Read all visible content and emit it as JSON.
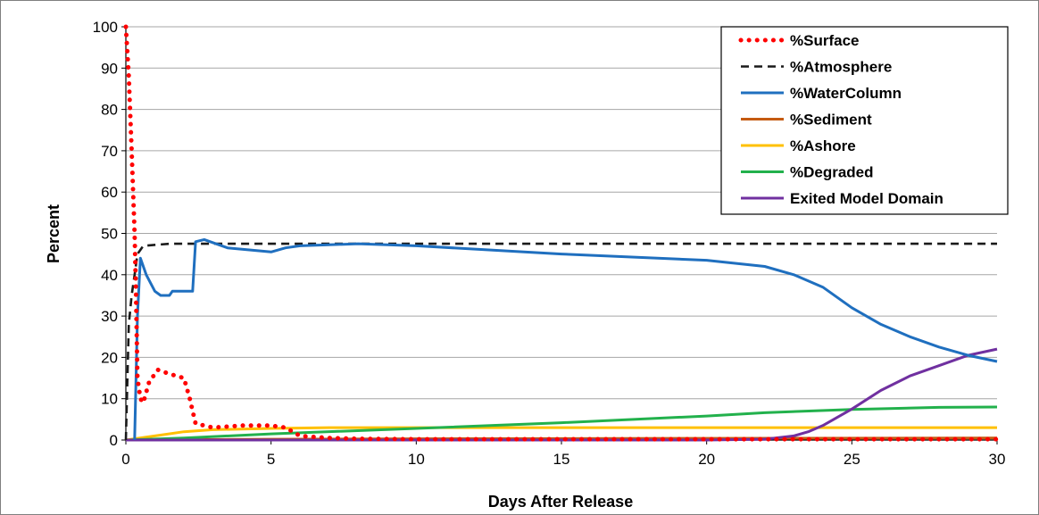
{
  "chart_data": {
    "type": "line",
    "title": "",
    "xlabel": "Days After Release",
    "ylabel": "Percent",
    "xlim": [
      0,
      30
    ],
    "ylim": [
      0,
      100
    ],
    "xticks": [
      0,
      5,
      10,
      15,
      20,
      25,
      30
    ],
    "yticks": [
      0,
      10,
      20,
      30,
      40,
      50,
      60,
      70,
      80,
      90,
      100
    ],
    "grid": "horizontal",
    "legend_position": "top-right",
    "series": [
      {
        "name": "%Surface",
        "color": "#ff0000",
        "style": "dotted",
        "points": [
          [
            0,
            100
          ],
          [
            0.1,
            88
          ],
          [
            0.2,
            70
          ],
          [
            0.3,
            50
          ],
          [
            0.35,
            35
          ],
          [
            0.4,
            15
          ],
          [
            0.5,
            10
          ],
          [
            0.6,
            9
          ],
          [
            0.8,
            14
          ],
          [
            1.1,
            17
          ],
          [
            1.5,
            16
          ],
          [
            2.0,
            15
          ],
          [
            2.2,
            10
          ],
          [
            2.4,
            4
          ],
          [
            3.0,
            3
          ],
          [
            4.0,
            3.5
          ],
          [
            5.0,
            3.5
          ],
          [
            5.5,
            3
          ],
          [
            6.0,
            1
          ],
          [
            7,
            0.5
          ],
          [
            8,
            0.3
          ],
          [
            10,
            0.2
          ],
          [
            15,
            0.2
          ],
          [
            20,
            0.2
          ],
          [
            25,
            0.2
          ],
          [
            30,
            0.2
          ]
        ]
      },
      {
        "name": "%Atmosphere",
        "color": "#1a1a1a",
        "style": "dashed",
        "points": [
          [
            0,
            0
          ],
          [
            0.1,
            28
          ],
          [
            0.2,
            35
          ],
          [
            0.3,
            40
          ],
          [
            0.4,
            45
          ],
          [
            0.6,
            47
          ],
          [
            1.5,
            47.5
          ],
          [
            5,
            47.5
          ],
          [
            10,
            47.5
          ],
          [
            15,
            47.5
          ],
          [
            20,
            47.5
          ],
          [
            25,
            47.5
          ],
          [
            30,
            47.5
          ]
        ]
      },
      {
        "name": "%WaterColumn",
        "color": "#1f6fbf",
        "style": "solid",
        "points": [
          [
            0.3,
            0
          ],
          [
            0.4,
            30
          ],
          [
            0.5,
            44
          ],
          [
            0.7,
            40
          ],
          [
            1.0,
            36
          ],
          [
            1.2,
            35
          ],
          [
            1.5,
            35
          ],
          [
            1.6,
            36
          ],
          [
            2.0,
            36
          ],
          [
            2.3,
            36
          ],
          [
            2.4,
            48
          ],
          [
            2.7,
            48.5
          ],
          [
            3.5,
            46.5
          ],
          [
            5.0,
            45.5
          ],
          [
            5.5,
            46.5
          ],
          [
            6.0,
            47
          ],
          [
            8,
            47.5
          ],
          [
            10,
            47
          ],
          [
            15,
            45
          ],
          [
            20,
            43.5
          ],
          [
            22,
            42
          ],
          [
            23,
            40
          ],
          [
            24,
            37
          ],
          [
            25,
            32
          ],
          [
            26,
            28
          ],
          [
            27,
            25
          ],
          [
            28,
            22.5
          ],
          [
            29,
            20.5
          ],
          [
            30,
            19
          ]
        ]
      },
      {
        "name": "%Sediment",
        "color": "#c55a11",
        "style": "solid",
        "points": [
          [
            0,
            0
          ],
          [
            5,
            0.2
          ],
          [
            10,
            0.3
          ],
          [
            20,
            0.4
          ],
          [
            30,
            0.5
          ]
        ]
      },
      {
        "name": "%Ashore",
        "color": "#ffc000",
        "style": "solid",
        "points": [
          [
            0,
            0
          ],
          [
            1,
            1
          ],
          [
            2,
            2
          ],
          [
            3,
            2.5
          ],
          [
            5,
            2.8
          ],
          [
            7,
            3
          ],
          [
            10,
            3
          ],
          [
            15,
            3
          ],
          [
            20,
            3
          ],
          [
            25,
            3
          ],
          [
            30,
            3
          ]
        ]
      },
      {
        "name": "%Degraded",
        "color": "#22b14c",
        "style": "solid",
        "points": [
          [
            0,
            0
          ],
          [
            2,
            0.5
          ],
          [
            5,
            1.5
          ],
          [
            10,
            2.8
          ],
          [
            15,
            4.2
          ],
          [
            20,
            5.8
          ],
          [
            22,
            6.6
          ],
          [
            25,
            7.4
          ],
          [
            28,
            7.9
          ],
          [
            30,
            8
          ]
        ]
      },
      {
        "name": "Exited Model Domain",
        "color": "#7030a0",
        "style": "solid",
        "points": [
          [
            0,
            0
          ],
          [
            10,
            0
          ],
          [
            20,
            0
          ],
          [
            22,
            0.2
          ],
          [
            23,
            1
          ],
          [
            23.5,
            2
          ],
          [
            24,
            3.5
          ],
          [
            25,
            7.5
          ],
          [
            26,
            12
          ],
          [
            27,
            15.5
          ],
          [
            28,
            18
          ],
          [
            29,
            20.5
          ],
          [
            30,
            22
          ]
        ]
      }
    ]
  }
}
